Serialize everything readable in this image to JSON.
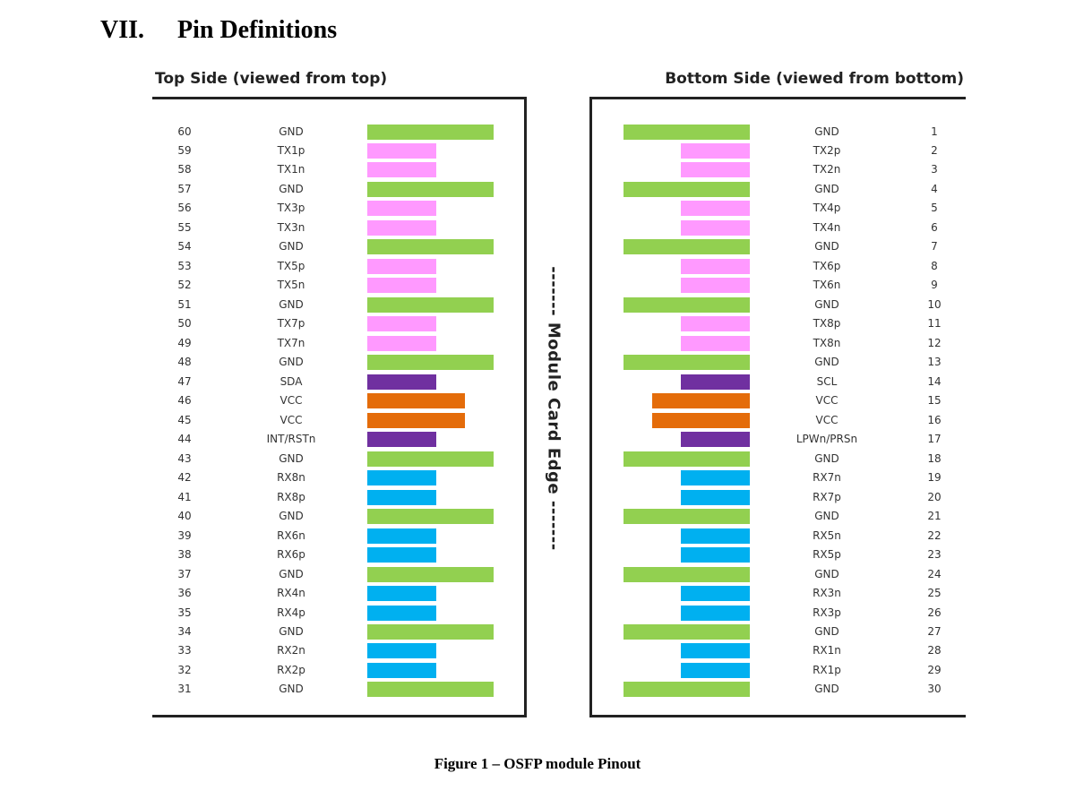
{
  "heading": {
    "number": "VII.",
    "title": "Pin Definitions"
  },
  "top_side": {
    "title": "Top Side (viewed from top)",
    "pins": [
      {
        "pin": "60",
        "name": "GND",
        "type": "ground"
      },
      {
        "pin": "59",
        "name": "TX1p",
        "type": "tx"
      },
      {
        "pin": "58",
        "name": "TX1n",
        "type": "tx"
      },
      {
        "pin": "57",
        "name": "GND",
        "type": "ground"
      },
      {
        "pin": "56",
        "name": "TX3p",
        "type": "tx"
      },
      {
        "pin": "55",
        "name": "TX3n",
        "type": "tx"
      },
      {
        "pin": "54",
        "name": "GND",
        "type": "ground"
      },
      {
        "pin": "53",
        "name": "TX5p",
        "type": "tx"
      },
      {
        "pin": "52",
        "name": "TX5n",
        "type": "tx"
      },
      {
        "pin": "51",
        "name": "GND",
        "type": "ground"
      },
      {
        "pin": "50",
        "name": "TX7p",
        "type": "tx"
      },
      {
        "pin": "49",
        "name": "TX7n",
        "type": "tx"
      },
      {
        "pin": "48",
        "name": "GND",
        "type": "ground"
      },
      {
        "pin": "47",
        "name": "SDA",
        "type": "control"
      },
      {
        "pin": "46",
        "name": "VCC",
        "type": "power"
      },
      {
        "pin": "45",
        "name": "VCC",
        "type": "power"
      },
      {
        "pin": "44",
        "name": "INT/RSTn",
        "type": "control"
      },
      {
        "pin": "43",
        "name": "GND",
        "type": "ground"
      },
      {
        "pin": "42",
        "name": "RX8n",
        "type": "rx"
      },
      {
        "pin": "41",
        "name": "RX8p",
        "type": "rx"
      },
      {
        "pin": "40",
        "name": "GND",
        "type": "ground"
      },
      {
        "pin": "39",
        "name": "RX6n",
        "type": "rx"
      },
      {
        "pin": "38",
        "name": "RX6p",
        "type": "rx"
      },
      {
        "pin": "37",
        "name": "GND",
        "type": "ground"
      },
      {
        "pin": "36",
        "name": "RX4n",
        "type": "rx"
      },
      {
        "pin": "35",
        "name": "RX4p",
        "type": "rx"
      },
      {
        "pin": "34",
        "name": "GND",
        "type": "ground"
      },
      {
        "pin": "33",
        "name": "RX2n",
        "type": "rx"
      },
      {
        "pin": "32",
        "name": "RX2p",
        "type": "rx"
      },
      {
        "pin": "31",
        "name": "GND",
        "type": "ground"
      }
    ]
  },
  "bottom_side": {
    "title": "Bottom Side (viewed from bottom)",
    "pins": [
      {
        "pin": "1",
        "name": "GND",
        "type": "ground"
      },
      {
        "pin": "2",
        "name": "TX2p",
        "type": "tx"
      },
      {
        "pin": "3",
        "name": "TX2n",
        "type": "tx"
      },
      {
        "pin": "4",
        "name": "GND",
        "type": "ground"
      },
      {
        "pin": "5",
        "name": "TX4p",
        "type": "tx"
      },
      {
        "pin": "6",
        "name": "TX4n",
        "type": "tx"
      },
      {
        "pin": "7",
        "name": "GND",
        "type": "ground"
      },
      {
        "pin": "8",
        "name": "TX6p",
        "type": "tx"
      },
      {
        "pin": "9",
        "name": "TX6n",
        "type": "tx"
      },
      {
        "pin": "10",
        "name": "GND",
        "type": "ground"
      },
      {
        "pin": "11",
        "name": "TX8p",
        "type": "tx"
      },
      {
        "pin": "12",
        "name": "TX8n",
        "type": "tx"
      },
      {
        "pin": "13",
        "name": "GND",
        "type": "ground"
      },
      {
        "pin": "14",
        "name": "SCL",
        "type": "control"
      },
      {
        "pin": "15",
        "name": "VCC",
        "type": "power"
      },
      {
        "pin": "16",
        "name": "VCC",
        "type": "power"
      },
      {
        "pin": "17",
        "name": "LPWn/PRSn",
        "type": "control"
      },
      {
        "pin": "18",
        "name": "GND",
        "type": "ground"
      },
      {
        "pin": "19",
        "name": "RX7n",
        "type": "rx"
      },
      {
        "pin": "20",
        "name": "RX7p",
        "type": "rx"
      },
      {
        "pin": "21",
        "name": "GND",
        "type": "ground"
      },
      {
        "pin": "22",
        "name": "RX5n",
        "type": "rx"
      },
      {
        "pin": "23",
        "name": "RX5p",
        "type": "rx"
      },
      {
        "pin": "24",
        "name": "GND",
        "type": "ground"
      },
      {
        "pin": "25",
        "name": "RX3n",
        "type": "rx"
      },
      {
        "pin": "26",
        "name": "RX3p",
        "type": "rx"
      },
      {
        "pin": "27",
        "name": "GND",
        "type": "ground"
      },
      {
        "pin": "28",
        "name": "RX1n",
        "type": "rx"
      },
      {
        "pin": "29",
        "name": "RX1p",
        "type": "rx"
      },
      {
        "pin": "30",
        "name": "GND",
        "type": "ground"
      }
    ]
  },
  "colors": {
    "ground": "#92d050",
    "tx": "#ff99ff",
    "rx": "#00b0f0",
    "power": "#e46c0a",
    "control": "#7030a0"
  },
  "edge_label": "------- Module Card Edge -------",
  "caption": "Figure 1 – OSFP module Pinout"
}
